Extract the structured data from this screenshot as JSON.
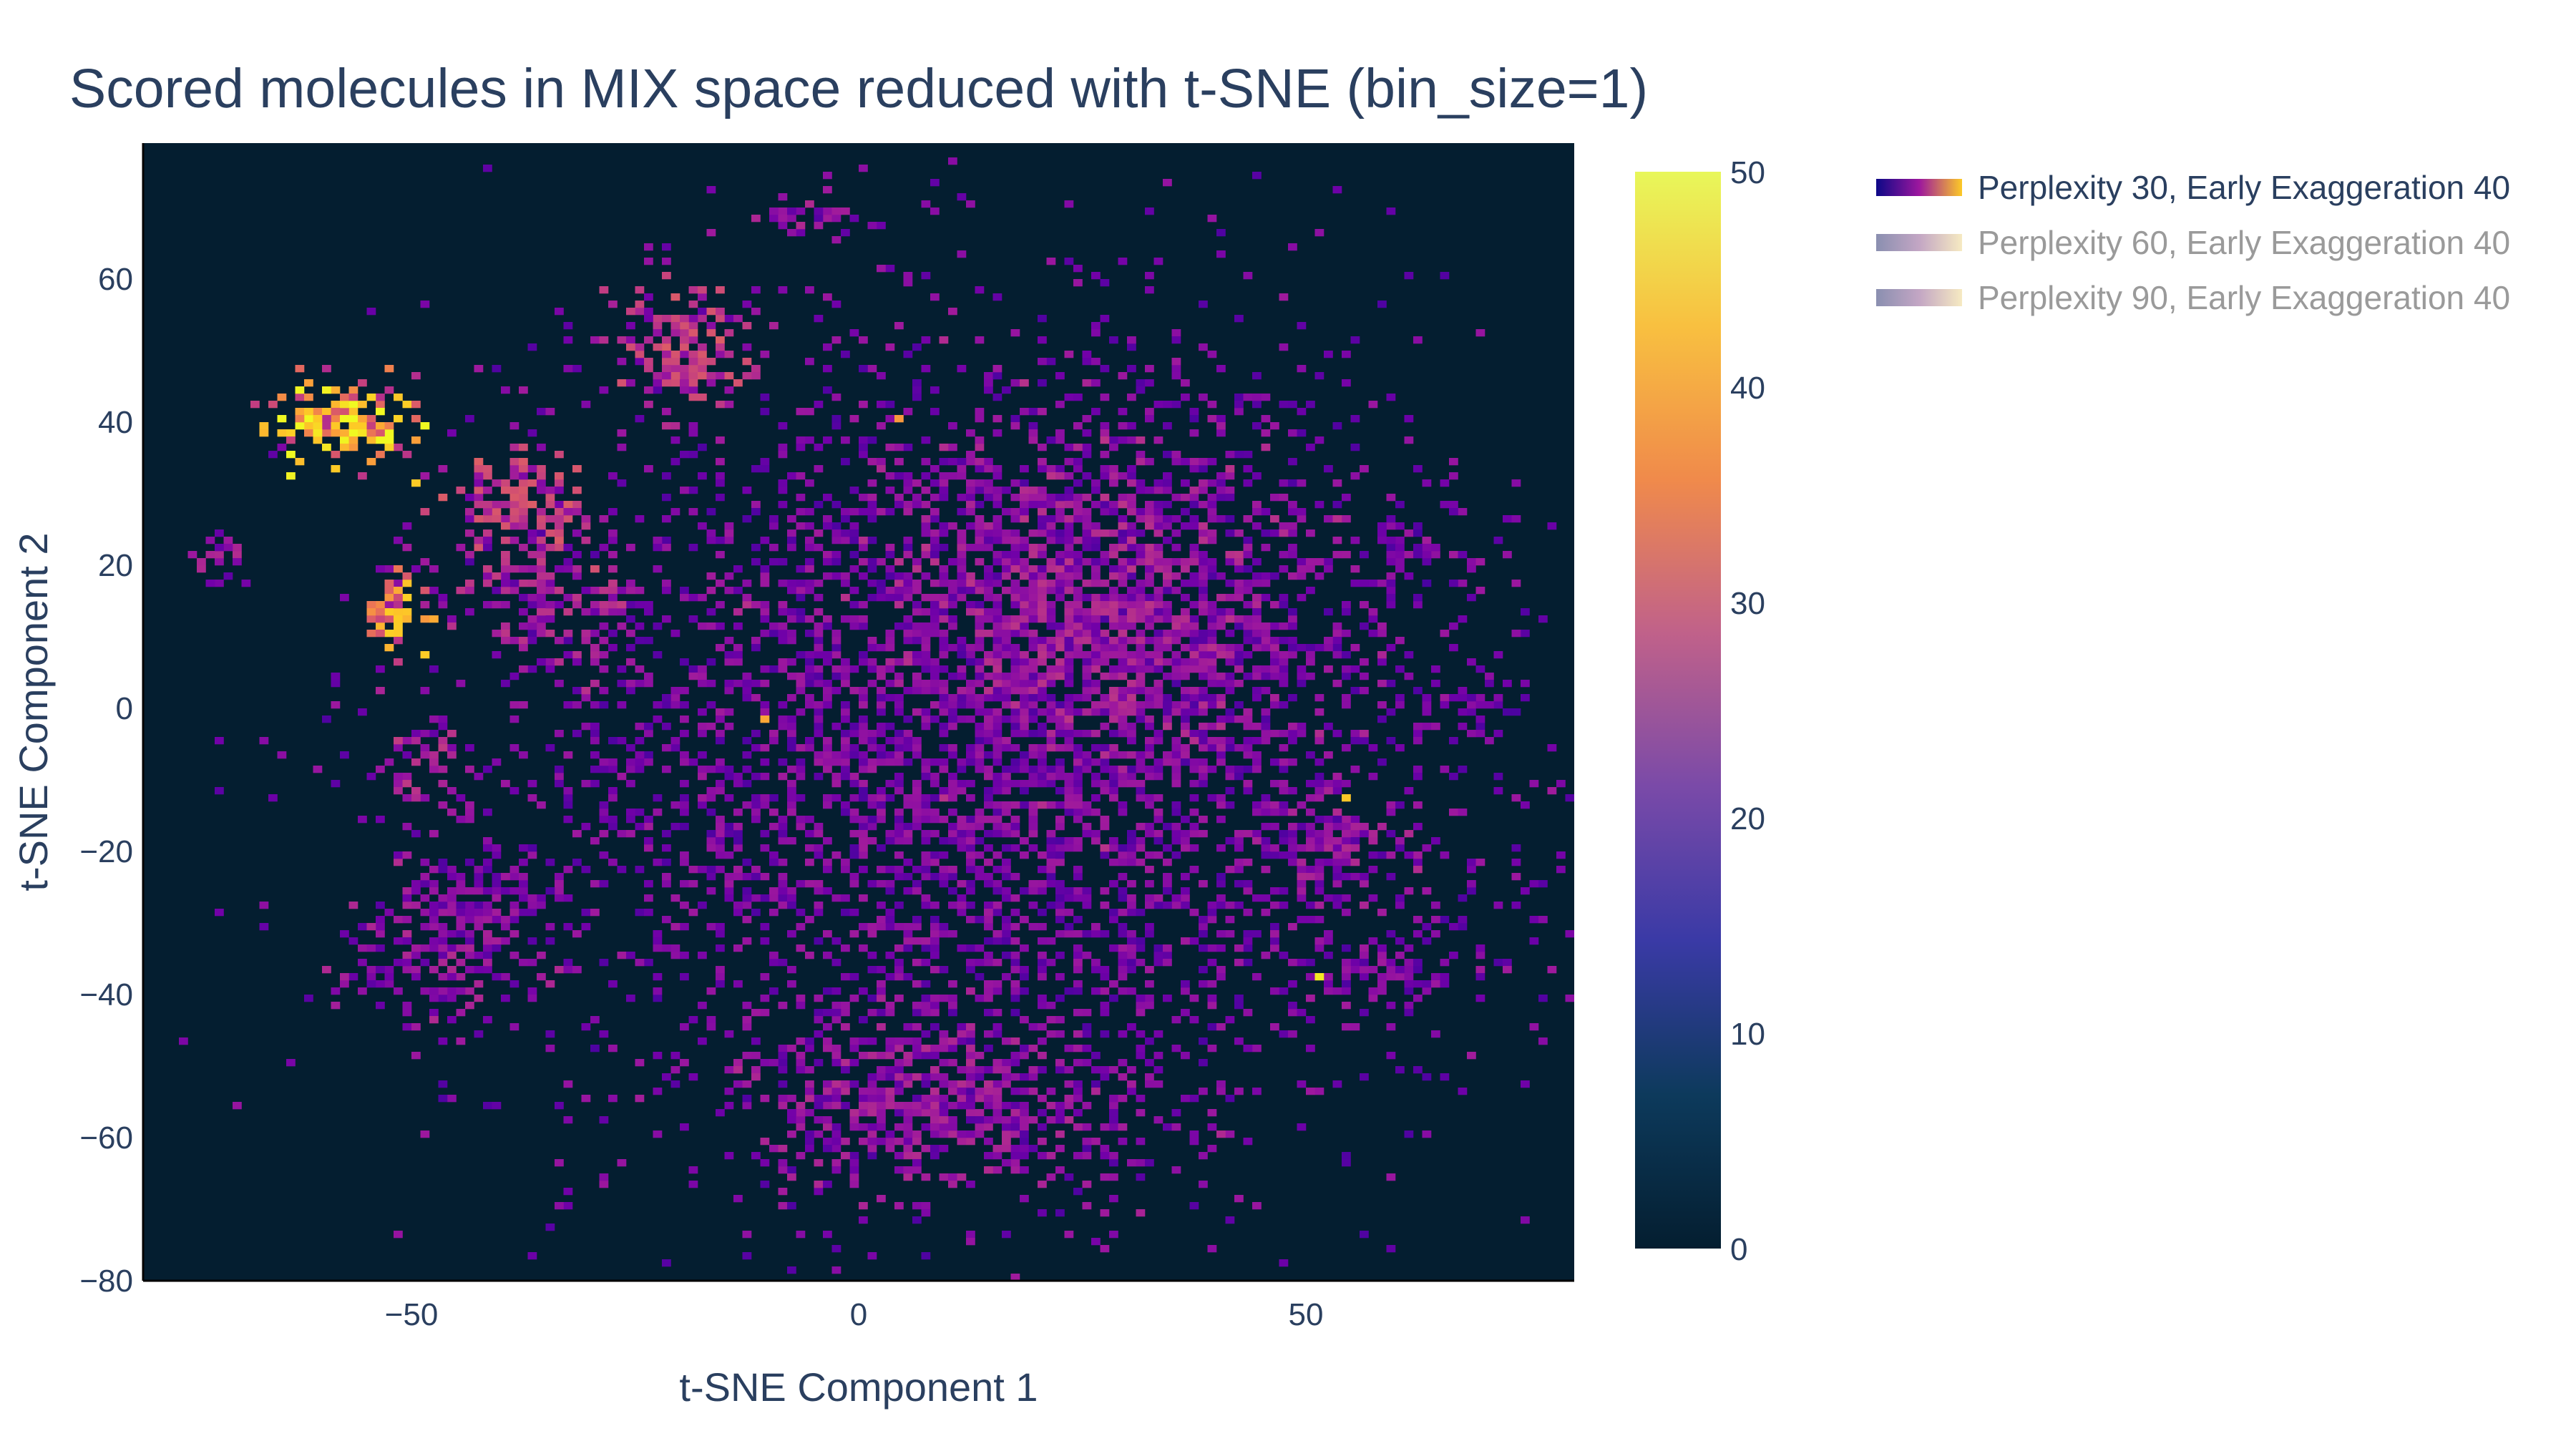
{
  "chart_data": {
    "type": "heatmap",
    "title": "Scored molecules in MIX space reduced with t-SNE (bin_size=1)",
    "xlabel": "t-SNE Component 1",
    "ylabel": "t-SNE Component 2",
    "xlim": [
      -80,
      80
    ],
    "ylim": [
      -80,
      79
    ],
    "x_ticks": [
      -50,
      0,
      50
    ],
    "x_tick_labels": [
      "−50",
      "0",
      "50"
    ],
    "y_ticks": [
      -80,
      -60,
      -40,
      -20,
      0,
      20,
      40,
      60
    ],
    "y_tick_labels": [
      "−80",
      "−60",
      "−40",
      "−20",
      "0",
      "20",
      "40",
      "60"
    ],
    "bin_size": 1,
    "background_color": "#0d1b2a",
    "colorscale": [
      "#0d0887",
      "#46039f",
      "#7201a8",
      "#9c179e",
      "#bd3786",
      "#d8576b",
      "#ed7953",
      "#fb9f3a",
      "#fdca26",
      "#f0f921"
    ],
    "colorbar": {
      "range": [
        0,
        50
      ],
      "ticks": [
        0,
        10,
        20,
        30,
        40,
        50
      ],
      "tick_labels": [
        "0",
        "10",
        "20",
        "30",
        "40",
        "50"
      ],
      "stops": [
        "#041e30",
        "#0d3a5c",
        "#3a3aa6",
        "#7a4aa8",
        "#c0618a",
        "#f08a4b",
        "#f8c040",
        "#e8f75a"
      ]
    },
    "clusters": [
      {
        "x": 15,
        "y": -5,
        "sx": 28,
        "sy": 28,
        "n": 4200,
        "v": 12
      },
      {
        "x": 25,
        "y": 15,
        "sx": 12,
        "sy": 12,
        "n": 900,
        "v": 15
      },
      {
        "x": 8,
        "y": -55,
        "sx": 10,
        "sy": 6,
        "n": 500,
        "v": 14
      },
      {
        "x": -20,
        "y": 50,
        "sx": 4,
        "sy": 4,
        "n": 150,
        "v": 20
      },
      {
        "x": -58,
        "y": 40,
        "sx": 4,
        "sy": 3,
        "n": 140,
        "v": 36
      },
      {
        "x": -38,
        "y": 28,
        "sx": 4,
        "sy": 4,
        "n": 130,
        "v": 20
      },
      {
        "x": -35,
        "y": 15,
        "sx": 5,
        "sy": 5,
        "n": 140,
        "v": 16
      },
      {
        "x": -52,
        "y": 12,
        "sx": 2,
        "sy": 3,
        "n": 40,
        "v": 32
      },
      {
        "x": -48,
        "y": -35,
        "sx": 5,
        "sy": 5,
        "n": 140,
        "v": 14
      },
      {
        "x": -42,
        "y": -28,
        "sx": 4,
        "sy": 4,
        "n": 120,
        "v": 12
      },
      {
        "x": 53,
        "y": -20,
        "sx": 4,
        "sy": 4,
        "n": 90,
        "v": 14
      },
      {
        "x": 58,
        "y": -38,
        "sx": 4,
        "sy": 3,
        "n": 70,
        "v": 12
      },
      {
        "x": 68,
        "y": 0,
        "sx": 3,
        "sy": 2,
        "n": 30,
        "v": 10
      },
      {
        "x": 60,
        "y": 22,
        "sx": 2,
        "sy": 2,
        "n": 25,
        "v": 10
      },
      {
        "x": -72,
        "y": 20,
        "sx": 2,
        "sy": 2,
        "n": 25,
        "v": 14
      },
      {
        "x": -48,
        "y": -8,
        "sx": 3,
        "sy": 3,
        "n": 40,
        "v": 16
      },
      {
        "x": -5,
        "y": 68,
        "sx": 4,
        "sy": 1,
        "n": 30,
        "v": 14
      }
    ],
    "hotspots": [
      {
        "x": -61,
        "y": 39,
        "v": 46
      },
      {
        "x": -62,
        "y": 41,
        "v": 44
      },
      {
        "x": -59,
        "y": 42,
        "v": 42
      },
      {
        "x": -57,
        "y": 37,
        "v": 40
      },
      {
        "x": -51,
        "y": 15,
        "v": 45
      },
      {
        "x": -49,
        "y": 12,
        "v": 38
      },
      {
        "x": 54,
        "y": -13,
        "v": 44
      },
      {
        "x": 51,
        "y": -38,
        "v": 48
      },
      {
        "x": -11,
        "y": -2,
        "v": 40
      },
      {
        "x": 4,
        "y": 40,
        "v": 38
      }
    ]
  },
  "legend": {
    "items": [
      {
        "label": "Perplexity 30, Early Exaggeration 40",
        "active": true
      },
      {
        "label": "Perplexity 60, Early Exaggeration 40",
        "active": false
      },
      {
        "label": "Perplexity 90, Early Exaggeration 40",
        "active": false
      }
    ],
    "active_text_color": "#2a3f5f",
    "inactive_text_color": "#9a9a9a"
  }
}
